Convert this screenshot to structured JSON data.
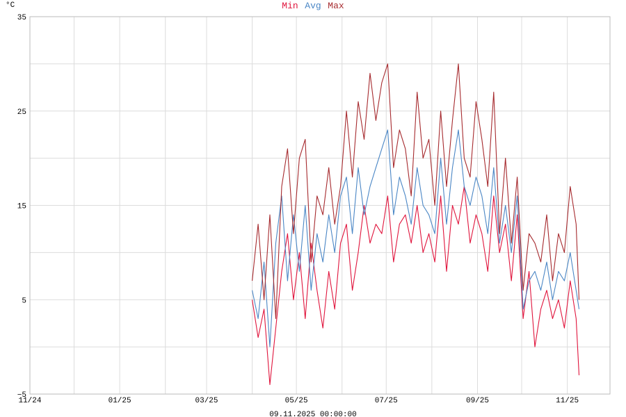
{
  "chart_data": {
    "type": "line",
    "title": "",
    "legend": [
      "Min",
      "Avg",
      "Max"
    ],
    "ylabel": "°C",
    "xlabel": "",
    "ylim": [
      -5,
      35
    ],
    "y_ticks": [
      "35",
      "25",
      "15",
      "5",
      "−5"
    ],
    "y_tick_values": [
      35,
      25,
      15,
      5,
      -5
    ],
    "grid": true,
    "x_range": [
      "2024-11-01",
      "2025-11-30"
    ],
    "x_ticks": [
      {
        "label": "11/24",
        "date": "2024-11-01"
      },
      {
        "label": "01/25",
        "date": "2025-01-01"
      },
      {
        "label": "03/25",
        "date": "2025-03-01"
      },
      {
        "label": "05/25",
        "date": "2025-05-01"
      },
      {
        "label": "07/25",
        "date": "2025-07-01"
      },
      {
        "label": "09/25",
        "date": "2025-09-01"
      },
      {
        "label": "11/25",
        "date": "2025-11-01"
      }
    ],
    "x_minor_gridlines": [
      "2024-12-01",
      "2025-02-01",
      "2025-04-01",
      "2025-06-01",
      "2025-08-01",
      "2025-10-01"
    ],
    "footer": "09.11.2025 00:00:00",
    "x": [
      "2025-04-01",
      "2025-04-05",
      "2025-04-09",
      "2025-04-13",
      "2025-04-17",
      "2025-04-21",
      "2025-04-25",
      "2025-04-29",
      "2025-05-03",
      "2025-05-07",
      "2025-05-11",
      "2025-05-15",
      "2025-05-19",
      "2025-05-23",
      "2025-05-27",
      "2025-05-31",
      "2025-06-04",
      "2025-06-08",
      "2025-06-12",
      "2025-06-16",
      "2025-06-20",
      "2025-06-24",
      "2025-06-28",
      "2025-07-02",
      "2025-07-06",
      "2025-07-10",
      "2025-07-14",
      "2025-07-18",
      "2025-07-22",
      "2025-07-26",
      "2025-07-30",
      "2025-08-03",
      "2025-08-07",
      "2025-08-11",
      "2025-08-15",
      "2025-08-19",
      "2025-08-23",
      "2025-08-27",
      "2025-08-31",
      "2025-09-04",
      "2025-09-08",
      "2025-09-12",
      "2025-09-16",
      "2025-09-20",
      "2025-09-24",
      "2025-09-28",
      "2025-10-02",
      "2025-10-06",
      "2025-10-10",
      "2025-10-14",
      "2025-10-18",
      "2025-10-22",
      "2025-10-26",
      "2025-10-30",
      "2025-11-03",
      "2025-11-07",
      "2025-11-09"
    ],
    "series": [
      {
        "name": "Min",
        "color": "#e0143c",
        "values": [
          5,
          1,
          4,
          -4,
          2,
          8,
          12,
          5,
          10,
          3,
          11,
          6,
          2,
          8,
          4,
          11,
          13,
          6,
          10,
          15,
          11,
          13,
          12,
          16,
          9,
          13,
          14,
          11,
          15,
          10,
          12,
          9,
          16,
          8,
          15,
          13,
          17,
          11,
          14,
          12,
          8,
          16,
          10,
          13,
          7,
          14,
          3,
          8,
          0,
          4,
          6,
          3,
          5,
          2,
          7,
          3,
          -3
        ]
      },
      {
        "name": "Avg",
        "color": "#4a86c5",
        "values": [
          6,
          3,
          9,
          0,
          11,
          16,
          7,
          14,
          8,
          15,
          6,
          12,
          9,
          14,
          10,
          16,
          18,
          12,
          19,
          14,
          17,
          19,
          21,
          23,
          14,
          18,
          16,
          13,
          19,
          15,
          14,
          12,
          20,
          13,
          19,
          23,
          17,
          15,
          18,
          16,
          12,
          19,
          11,
          15,
          10,
          16,
          4,
          7,
          8,
          6,
          9,
          5,
          8,
          7,
          10,
          6,
          4
        ]
      },
      {
        "name": "Max",
        "color": "#a62a2e",
        "values": [
          7,
          13,
          5,
          14,
          3,
          17,
          21,
          12,
          20,
          22,
          9,
          16,
          14,
          19,
          13,
          17,
          25,
          18,
          26,
          22,
          29,
          24,
          28,
          30,
          19,
          23,
          21,
          16,
          27,
          20,
          22,
          15,
          25,
          17,
          24,
          30,
          20,
          18,
          26,
          22,
          17,
          27,
          12,
          20,
          11,
          18,
          6,
          12,
          11,
          9,
          14,
          7,
          12,
          10,
          17,
          13,
          5
        ]
      }
    ]
  }
}
